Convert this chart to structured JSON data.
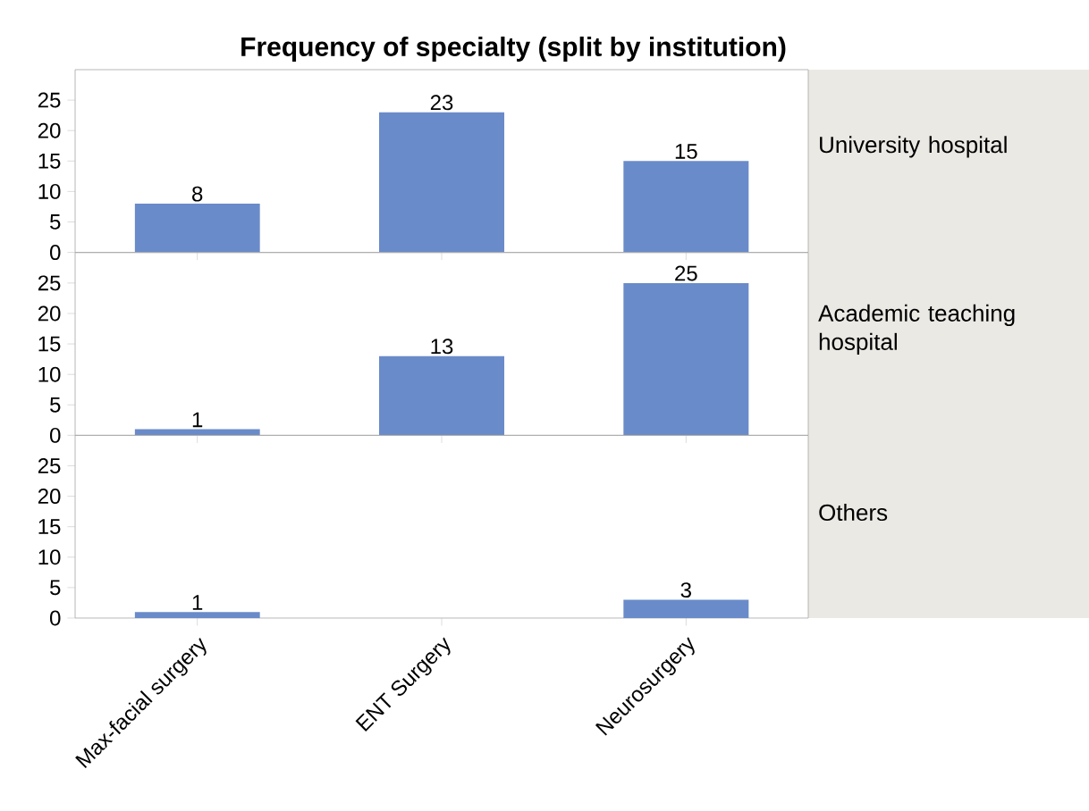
{
  "chart_data": [
    {
      "type": "bar",
      "title": "Frequency of specialty (split by institution)",
      "annotations": [
        "University hospital"
      ],
      "categories": [
        null,
        null,
        null
      ],
      "values": [
        8,
        23,
        15
      ],
      "color": "#6a8bc9",
      "ylim": [
        0,
        30
      ],
      "yticks": [
        0,
        5,
        10,
        15,
        20,
        25
      ],
      "data_labels": true,
      "tick_labels": "y"
    },
    {
      "type": "bar",
      "annotations": [
        "Academic teaching hospital"
      ],
      "categories": [
        null,
        null,
        null
      ],
      "values": [
        1,
        13,
        25
      ],
      "color": "#6a8bc9",
      "ylim": [
        0,
        30
      ],
      "yticks": [
        0,
        5,
        10,
        15,
        20,
        25
      ],
      "data_labels": true,
      "tick_labels": "y"
    },
    {
      "type": "bar",
      "annotations": [
        "Others"
      ],
      "categories": [
        "Max-facial surgery",
        "ENT Surgery",
        "Neurosurgery"
      ],
      "values": [
        1,
        null,
        3
      ],
      "color": "#6a8bc9",
      "ylim": [
        0,
        30
      ],
      "yticks": [
        0,
        5,
        10,
        15,
        20,
        25
      ],
      "data_labels": true
    }
  ]
}
